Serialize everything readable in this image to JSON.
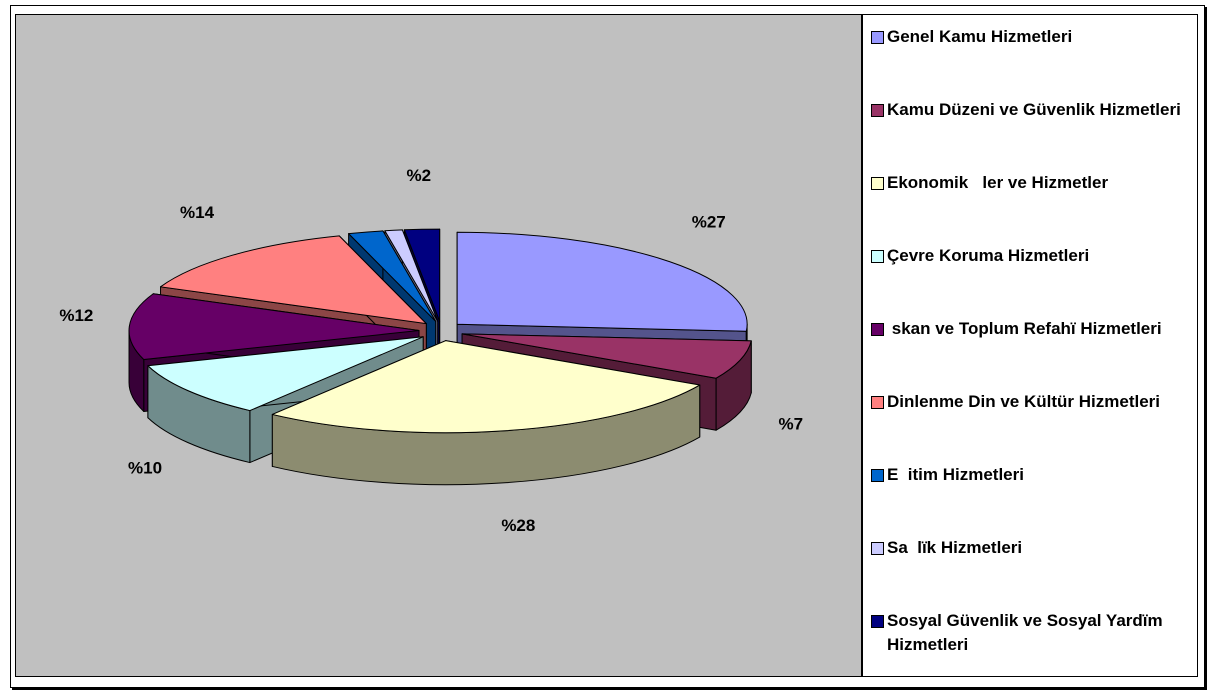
{
  "chart_data": {
    "type": "pie3d",
    "categories": [
      "Genel Kamu Hizmetleri",
      "Kamu Düzeni ve Güvenlik Hizmetleri",
      "Ekonomik   ler ve Hizmetler",
      "Çevre Koruma Hizmetleri",
      " skan ve Toplum Refahï Hizmetleri",
      "Dinlenme Din ve Kültür Hizmetleri",
      "E  itim Hizmetleri",
      "Sa  lïk Hizmetleri",
      "Sosyal Güvenlik ve Sosyal Yardïm Hizmetleri"
    ],
    "values": [
      27,
      7,
      28,
      10,
      12,
      14,
      2,
      1,
      2
    ],
    "value_labels": [
      "%27",
      "%7",
      "%28",
      "%10",
      "%12",
      "%14",
      null,
      null,
      "%2"
    ],
    "colors": [
      "#9999ff",
      "#993366",
      "#ffffcc",
      "#ccffff",
      "#660066",
      "#ff8080",
      "#0066cc",
      "#ccccff",
      "#000080"
    ],
    "legend": "right"
  }
}
